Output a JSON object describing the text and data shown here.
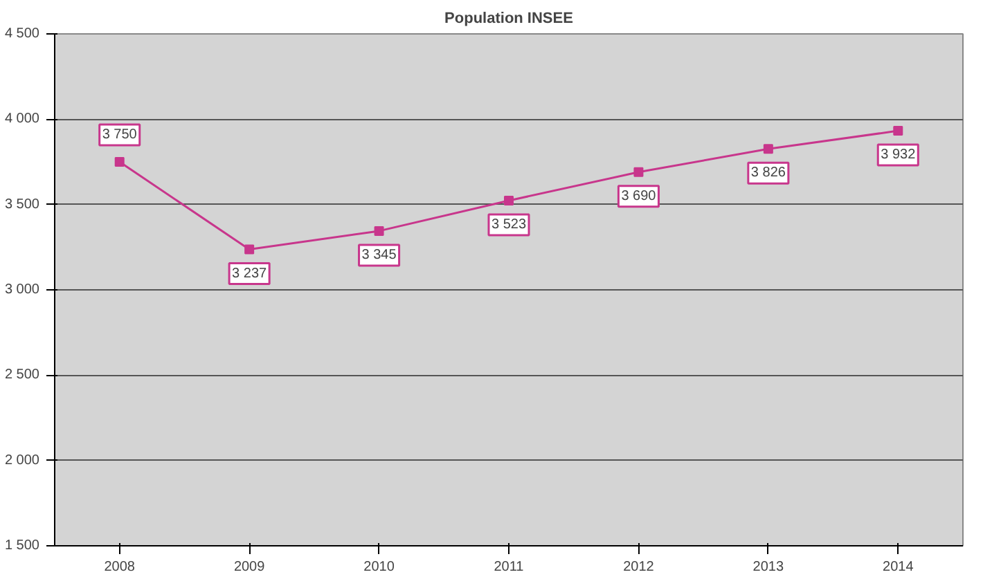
{
  "chart_data": {
    "type": "line",
    "title": "Population INSEE",
    "categories": [
      "2008",
      "2009",
      "2010",
      "2011",
      "2012",
      "2013",
      "2014"
    ],
    "series": [
      {
        "color": "#c8368c",
        "values": [
          3750,
          3237,
          3345,
          3523,
          3690,
          3826,
          3932
        ],
        "value_labels": [
          "3 750",
          "3 237",
          "3 345",
          "3 523",
          "3 690",
          "3 826",
          "3 932"
        ]
      }
    ],
    "ylim": [
      1500,
      4500
    ],
    "yticks": [
      {
        "value": 1500,
        "label": "1 500"
      },
      {
        "value": 2000,
        "label": "2 000"
      },
      {
        "value": 2500,
        "label": "2 500"
      },
      {
        "value": 3000,
        "label": "3 000"
      },
      {
        "value": 3500,
        "label": "3 500"
      },
      {
        "value": 4000,
        "label": "4 000"
      },
      {
        "value": 4500,
        "label": "4 500"
      }
    ],
    "grid": "y",
    "marker": "square",
    "line_style": "solid"
  }
}
